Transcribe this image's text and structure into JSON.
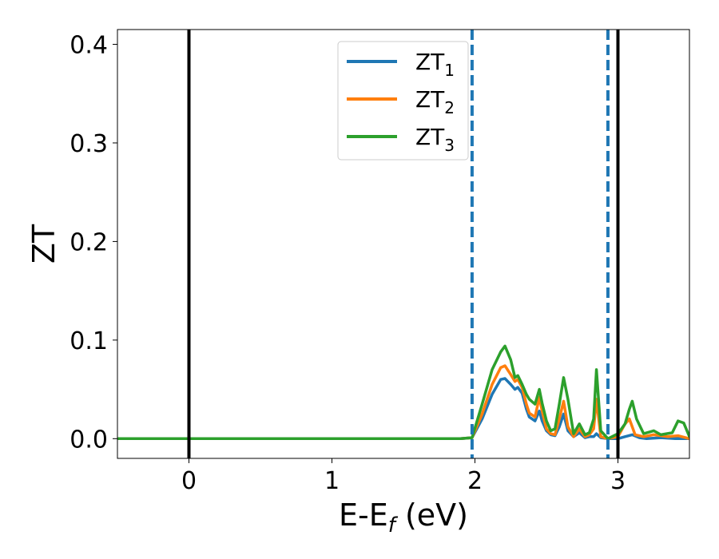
{
  "chart_data": {
    "type": "line",
    "xlabel": {
      "main": "E-E",
      "sub": "f",
      "suffix": " (eV)"
    },
    "ylabel": "ZT",
    "xlim": [
      -0.5,
      3.5
    ],
    "ylim": [
      -0.02,
      0.415
    ],
    "xticks": [
      0,
      1,
      2,
      3
    ],
    "xtick_labels": [
      "0",
      "1",
      "2",
      "3"
    ],
    "yticks": [
      0.0,
      0.1,
      0.2,
      0.3,
      0.4
    ],
    "ytick_labels": [
      "0.0",
      "0.1",
      "0.2",
      "0.3",
      "0.4"
    ],
    "grid": false,
    "legend_position": "top-center",
    "vlines": [
      {
        "x": 0.0,
        "style": "solid",
        "color": "#000000"
      },
      {
        "x": 3.0,
        "style": "solid",
        "color": "#000000"
      },
      {
        "x": 1.98,
        "style": "dashed",
        "color": "#1f77b4"
      },
      {
        "x": 2.93,
        "style": "dashed",
        "color": "#1f77b4"
      }
    ],
    "series": [
      {
        "name": "ZT",
        "sub": "1",
        "color": "#1f77b4",
        "x": [
          -0.5,
          1.9,
          1.98,
          2.05,
          2.12,
          2.18,
          2.21,
          2.25,
          2.28,
          2.3,
          2.33,
          2.36,
          2.38,
          2.42,
          2.45,
          2.47,
          2.5,
          2.53,
          2.56,
          2.59,
          2.62,
          2.65,
          2.69,
          2.73,
          2.77,
          2.8,
          2.83,
          2.85,
          2.88,
          2.93,
          3.0,
          3.05,
          3.1,
          3.15,
          3.2,
          3.3,
          3.4,
          3.5
        ],
        "y": [
          0.0,
          0.0,
          0.001,
          0.02,
          0.045,
          0.06,
          0.061,
          0.055,
          0.05,
          0.052,
          0.046,
          0.03,
          0.022,
          0.018,
          0.028,
          0.018,
          0.008,
          0.004,
          0.003,
          0.012,
          0.025,
          0.008,
          0.002,
          0.006,
          0.001,
          0.002,
          0.002,
          0.005,
          0.001,
          0.0,
          0.0,
          0.002,
          0.004,
          0.001,
          0.0,
          0.001,
          0.0,
          0.0
        ]
      },
      {
        "name": "ZT",
        "sub": "2",
        "color": "#ff7f0e",
        "x": [
          -0.5,
          1.9,
          1.98,
          2.05,
          2.12,
          2.18,
          2.21,
          2.25,
          2.28,
          2.3,
          2.33,
          2.36,
          2.38,
          2.42,
          2.45,
          2.47,
          2.5,
          2.53,
          2.56,
          2.59,
          2.62,
          2.65,
          2.69,
          2.73,
          2.77,
          2.8,
          2.83,
          2.85,
          2.88,
          2.93,
          3.0,
          3.05,
          3.08,
          3.12,
          3.18,
          3.25,
          3.35,
          3.42,
          3.5
        ],
        "y": [
          0.0,
          0.0,
          0.001,
          0.025,
          0.055,
          0.072,
          0.074,
          0.065,
          0.058,
          0.06,
          0.052,
          0.035,
          0.026,
          0.022,
          0.042,
          0.028,
          0.01,
          0.005,
          0.004,
          0.02,
          0.038,
          0.012,
          0.002,
          0.01,
          0.002,
          0.004,
          0.01,
          0.04,
          0.002,
          0.0,
          0.002,
          0.015,
          0.02,
          0.004,
          0.002,
          0.004,
          0.002,
          0.003,
          0.0
        ]
      },
      {
        "name": "ZT",
        "sub": "3",
        "color": "#2ca02c",
        "x": [
          -0.5,
          1.9,
          1.98,
          2.05,
          2.12,
          2.18,
          2.21,
          2.25,
          2.28,
          2.3,
          2.33,
          2.36,
          2.38,
          2.42,
          2.45,
          2.47,
          2.5,
          2.53,
          2.56,
          2.59,
          2.62,
          2.65,
          2.69,
          2.73,
          2.77,
          2.8,
          2.83,
          2.85,
          2.88,
          2.93,
          3.0,
          3.05,
          3.08,
          3.1,
          3.13,
          3.18,
          3.25,
          3.3,
          3.38,
          3.42,
          3.46,
          3.5
        ],
        "y": [
          0.0,
          0.0,
          0.001,
          0.035,
          0.07,
          0.088,
          0.094,
          0.08,
          0.062,
          0.064,
          0.055,
          0.045,
          0.04,
          0.035,
          0.05,
          0.036,
          0.018,
          0.008,
          0.01,
          0.035,
          0.062,
          0.04,
          0.005,
          0.015,
          0.004,
          0.006,
          0.02,
          0.07,
          0.008,
          0.0,
          0.005,
          0.015,
          0.03,
          0.038,
          0.02,
          0.005,
          0.008,
          0.004,
          0.006,
          0.018,
          0.016,
          0.002
        ]
      }
    ]
  }
}
